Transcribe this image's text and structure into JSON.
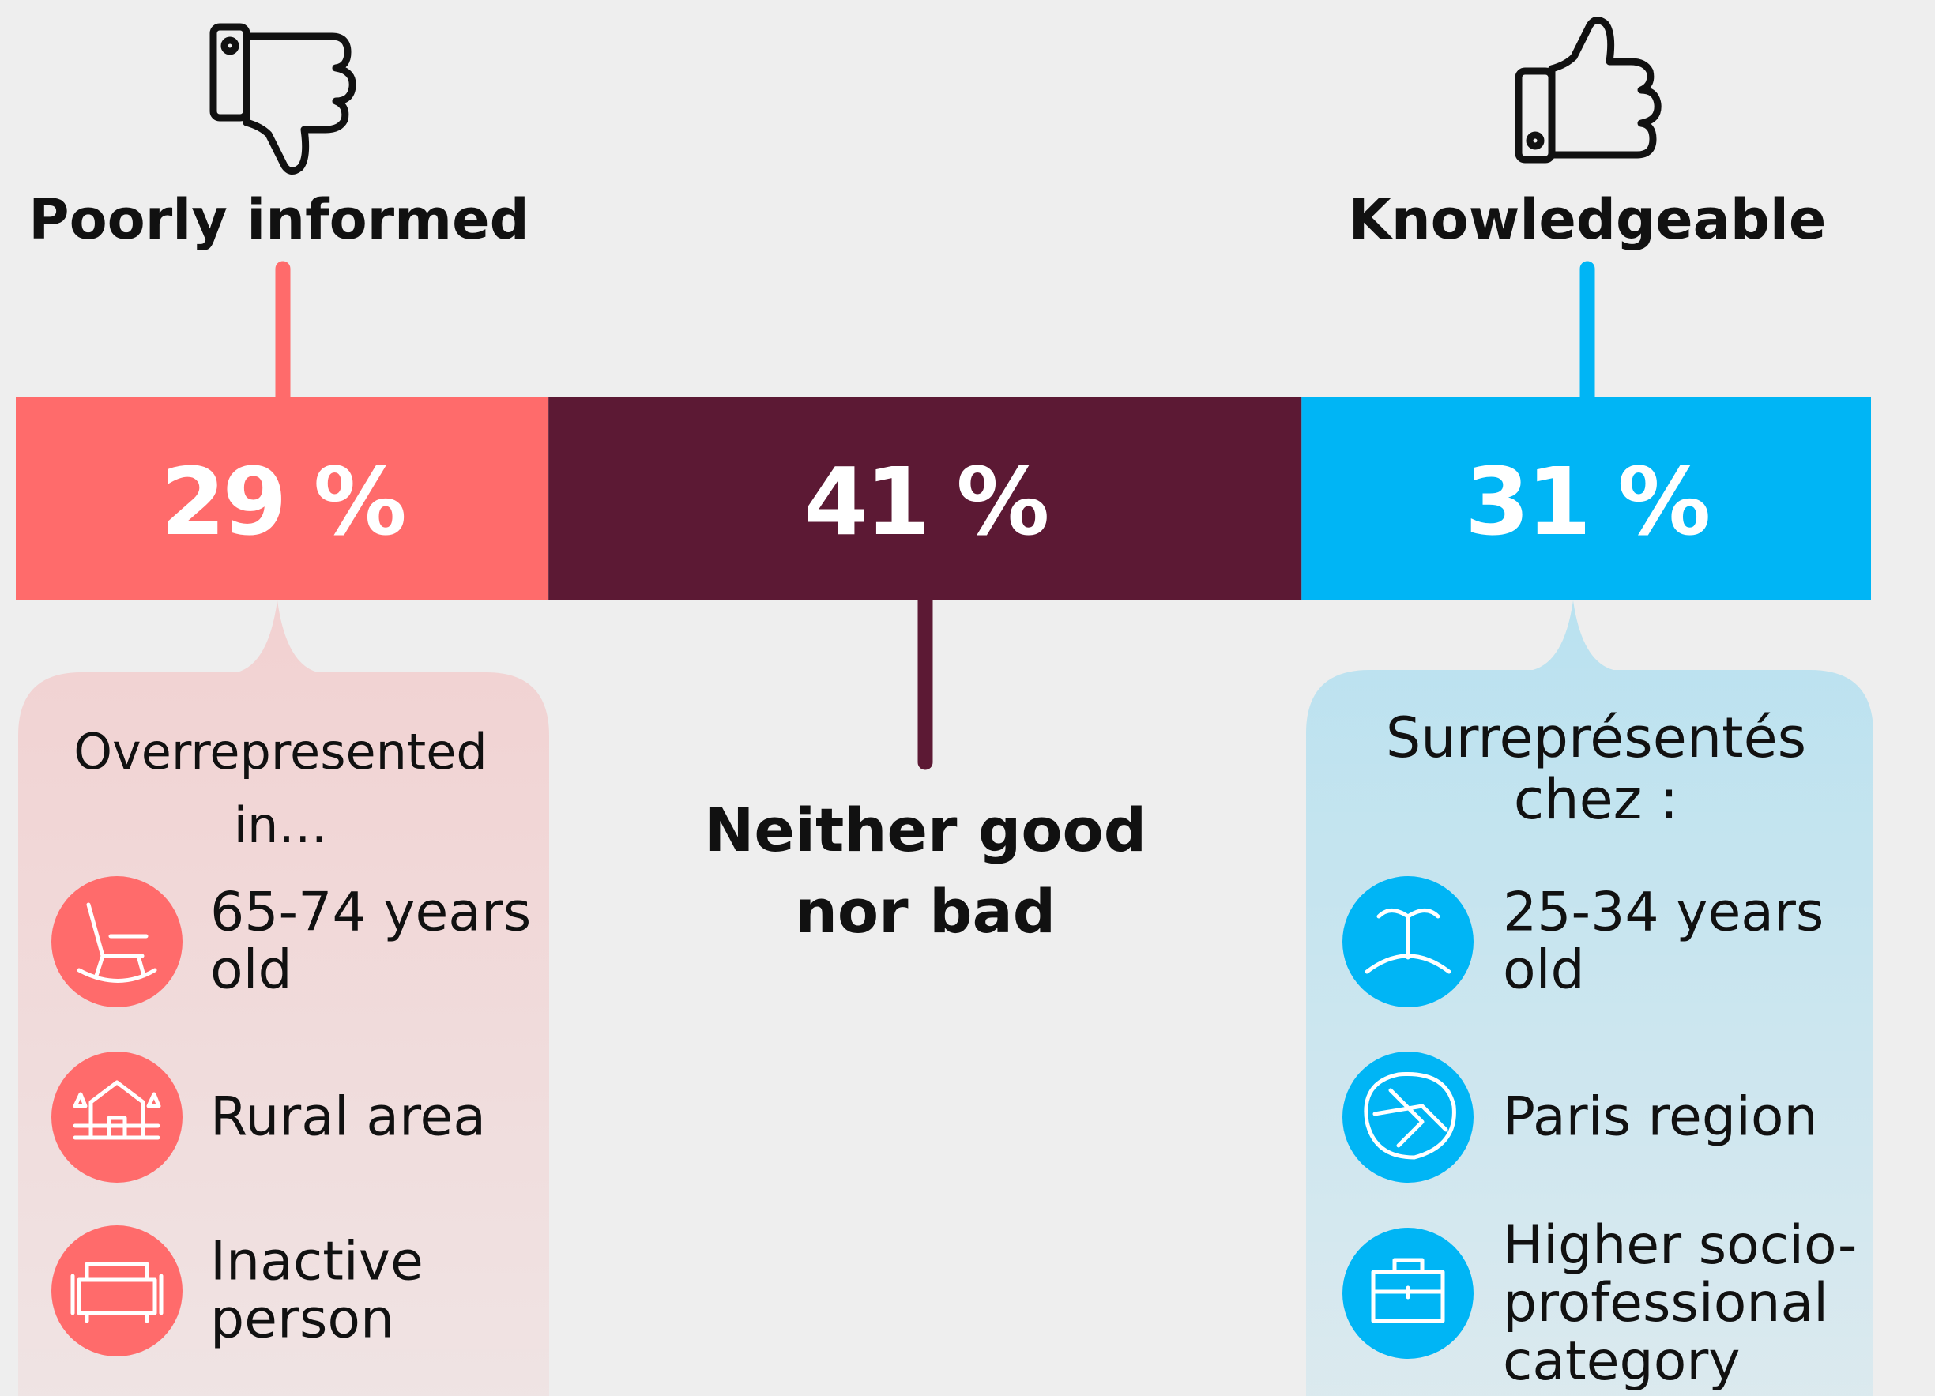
{
  "chart_data": {
    "type": "stacked-bar",
    "xlim": [
      0,
      101
    ],
    "series": [
      {
        "name": "Poorly informed",
        "color": "#ff6b6b",
        "values": [
          29
        ],
        "value_labels": [
          "29 %"
        ]
      },
      {
        "name": "Neither good nor bad",
        "color": "#5c1934",
        "values": [
          41
        ],
        "value_labels": [
          "41 %"
        ]
      },
      {
        "name": "Knowledgeable",
        "color": "#00b5f5",
        "values": [
          31
        ],
        "value_labels": [
          "31 %"
        ]
      }
    ]
  },
  "callouts": [
    {
      "title": "Overrepresented in…",
      "items": [
        "65-74 years old",
        "Rural area",
        "Inactive person"
      ]
    },
    {
      "title": "Surreprésentés chez :",
      "items": [
        "25-34 years old",
        "Paris region",
        "Higher socio-professional category"
      ]
    }
  ]
}
